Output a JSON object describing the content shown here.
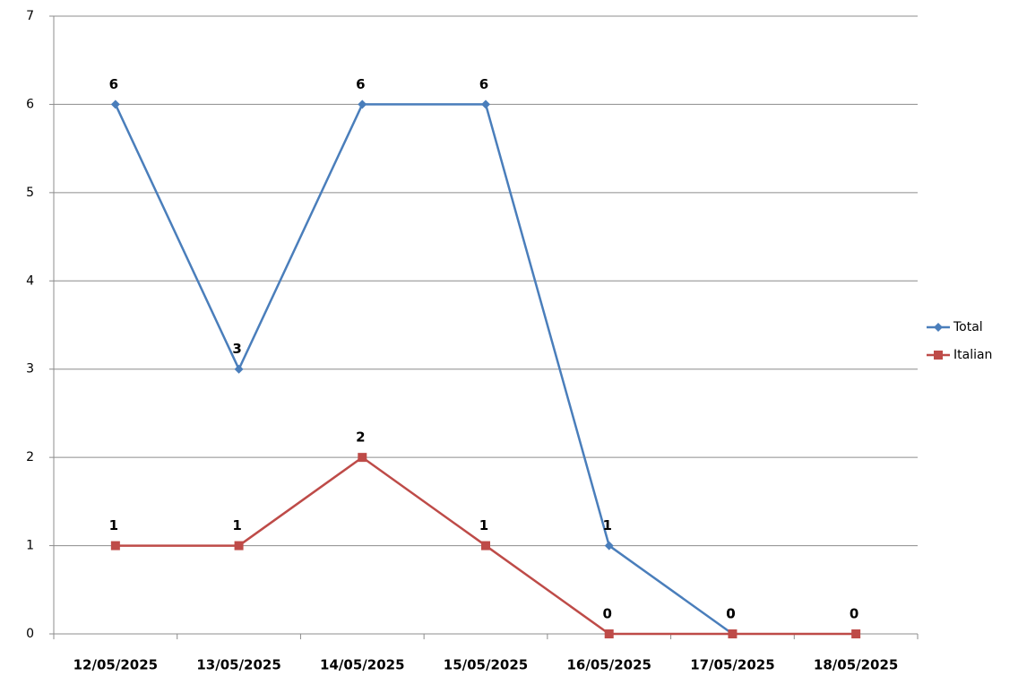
{
  "chart_data": {
    "type": "line",
    "categories": [
      "12/05/2025",
      "13/05/2025",
      "14/05/2025",
      "15/05/2025",
      "16/05/2025",
      "17/05/2025",
      "18/05/2025"
    ],
    "series": [
      {
        "name": "Total",
        "color": "#4a7ebb",
        "marker": "diamond",
        "values": [
          6,
          3,
          6,
          6,
          1,
          0,
          null
        ]
      },
      {
        "name": "Italian",
        "color": "#be4b48",
        "marker": "square",
        "values": [
          1,
          1,
          2,
          1,
          0,
          0,
          0
        ]
      }
    ],
    "ylim": [
      0,
      7
    ],
    "yticks": [
      0,
      1,
      2,
      3,
      4,
      5,
      6,
      7
    ],
    "grid": true,
    "legend": "right"
  }
}
